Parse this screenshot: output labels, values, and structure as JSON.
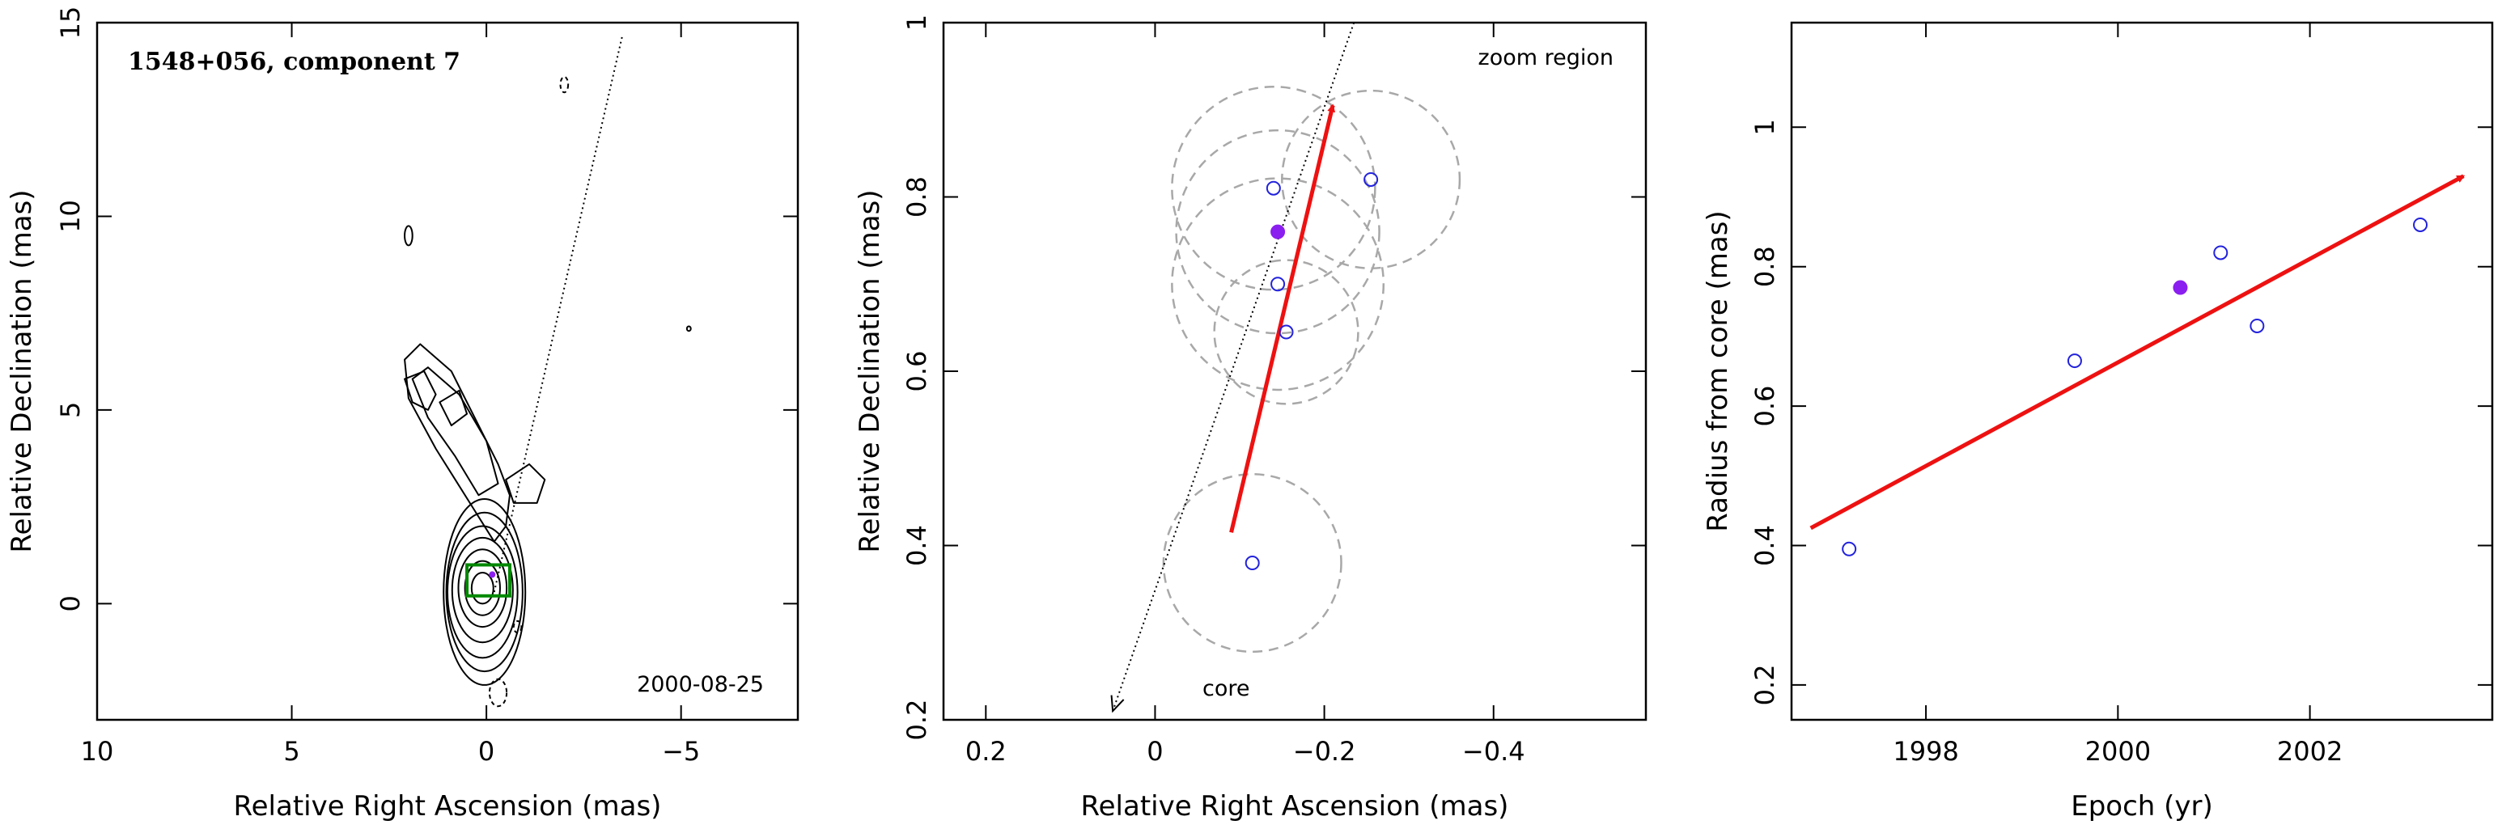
{
  "chart_data": [
    {
      "type": "contour",
      "title": "1548+056, component 7",
      "epoch_label": "2000-08-25",
      "xlabel": "Relative Right Ascension (mas)",
      "ylabel": "Relative Declination (mas)",
      "xlim": [
        10,
        -8
      ],
      "ylim": [
        -3,
        15
      ],
      "x_ticks": [
        10,
        5,
        0,
        -5
      ],
      "x_tick_labels": [
        "10",
        "5",
        "0",
        "−5"
      ],
      "y_ticks": [
        0,
        5,
        10,
        15
      ],
      "y_tick_labels": [
        "0",
        "5",
        "10",
        "15"
      ],
      "trajectory_line": [
        [
          -0.2,
          0.3
        ],
        [
          -3.5,
          14.7
        ]
      ],
      "zoom_box": {
        "x": [
          -0.6,
          0.5
        ],
        "y": [
          0.2,
          1.0
        ]
      },
      "core_contours": [
        {
          "cx": 0.1,
          "cy": 0.4,
          "rx": 0.28,
          "ry": 0.4
        },
        {
          "cx": 0.1,
          "cy": 0.4,
          "rx": 0.45,
          "ry": 0.7
        },
        {
          "cx": 0.1,
          "cy": 0.4,
          "rx": 0.62,
          "ry": 1.0
        },
        {
          "cx": 0.1,
          "cy": 0.35,
          "rx": 0.78,
          "ry": 1.35
        },
        {
          "cx": 0.1,
          "cy": 0.3,
          "rx": 0.9,
          "ry": 1.7
        },
        {
          "cx": 0.05,
          "cy": 0.3,
          "rx": 0.98,
          "ry": 2.05
        },
        {
          "cx": 0.05,
          "cy": 0.3,
          "rx": 1.05,
          "ry": 2.4
        }
      ],
      "jet_contours": [
        [
          [
            0.3,
            2.4
          ],
          [
            0.8,
            3.2
          ],
          [
            1.3,
            4.0
          ],
          [
            2.0,
            5.3
          ],
          [
            2.1,
            6.3
          ],
          [
            1.7,
            6.7
          ],
          [
            0.9,
            6.0
          ],
          [
            0.3,
            4.8
          ],
          [
            -0.3,
            3.6
          ],
          [
            -0.6,
            2.8
          ],
          [
            -0.5,
            2.0
          ],
          [
            -0.2,
            1.6
          ]
        ],
        [
          [
            0.2,
            2.8
          ],
          [
            0.8,
            3.8
          ],
          [
            1.5,
            4.8
          ],
          [
            1.9,
            5.8
          ],
          [
            1.5,
            6.1
          ],
          [
            0.7,
            5.4
          ],
          [
            0.0,
            4.2
          ],
          [
            -0.3,
            3.1
          ]
        ],
        [
          [
            1.9,
            5.2
          ],
          [
            2.1,
            5.8
          ],
          [
            1.6,
            6.0
          ],
          [
            1.3,
            5.4
          ],
          [
            1.5,
            5.0
          ]
        ],
        [
          [
            0.9,
            4.6
          ],
          [
            1.2,
            5.2
          ],
          [
            0.7,
            5.5
          ],
          [
            0.5,
            4.9
          ]
        ],
        [
          [
            -0.5,
            3.2
          ],
          [
            -1.1,
            3.6
          ],
          [
            -1.5,
            3.2
          ],
          [
            -1.3,
            2.6
          ],
          [
            -0.7,
            2.6
          ]
        ]
      ],
      "small_contours": [
        {
          "cx": 2.0,
          "cy": 9.5,
          "rx": 0.1,
          "ry": 0.25,
          "dashed": false
        },
        {
          "cx": -2.0,
          "cy": 13.4,
          "rx": 0.1,
          "ry": 0.2,
          "dashed": true
        },
        {
          "cx": -5.2,
          "cy": 7.1,
          "rx": 0.05,
          "ry": 0.06,
          "dashed": false
        },
        {
          "cx": -0.8,
          "cy": -0.6,
          "rx": 0.1,
          "ry": 0.15,
          "dashed": true
        },
        {
          "cx": -0.3,
          "cy": -2.3,
          "rx": 0.22,
          "ry": 0.35,
          "dashed": true
        }
      ]
    },
    {
      "type": "scatter",
      "annotation_zoom": "zoom region",
      "annotation_core": "core",
      "xlabel": "Relative Right Ascension (mas)",
      "ylabel": "Relative Declination (mas)",
      "xlim": [
        0.25,
        -0.58
      ],
      "ylim": [
        0.2,
        1.0
      ],
      "x_ticks": [
        0.2,
        0,
        -0.2,
        -0.4
      ],
      "x_tick_labels": [
        "0.2",
        "0",
        "−0.2",
        "−0.4"
      ],
      "y_ticks": [
        0.2,
        0.4,
        0.6,
        0.8,
        1.0
      ],
      "y_tick_labels": [
        "0.2",
        "0.4",
        "0.6",
        "0.8",
        "1"
      ],
      "points": [
        {
          "x": -0.115,
          "y": 0.38,
          "filled": false
        },
        {
          "x": -0.155,
          "y": 0.645,
          "filled": false
        },
        {
          "x": -0.145,
          "y": 0.7,
          "filled": false
        },
        {
          "x": -0.145,
          "y": 0.76,
          "filled": true
        },
        {
          "x": -0.14,
          "y": 0.81,
          "filled": false
        },
        {
          "x": -0.255,
          "y": 0.82,
          "filled": false
        }
      ],
      "error_circles": [
        {
          "x": -0.115,
          "y": 0.38,
          "r": 0.105
        },
        {
          "x": -0.155,
          "y": 0.645,
          "r": 0.085
        },
        {
          "x": -0.145,
          "y": 0.7,
          "r": 0.125
        },
        {
          "x": -0.145,
          "y": 0.76,
          "r": 0.12
        },
        {
          "x": -0.14,
          "y": 0.81,
          "r": 0.12
        },
        {
          "x": -0.255,
          "y": 0.82,
          "r": 0.105
        }
      ],
      "motion_vector": {
        "from": [
          -0.09,
          0.415
        ],
        "to": [
          -0.21,
          0.905
        ]
      },
      "core_line": {
        "from": [
          -0.235,
          1.0
        ],
        "to": [
          0.05,
          0.21
        ]
      }
    },
    {
      "type": "scatter",
      "xlabel": "Epoch (yr)",
      "ylabel": "Radius from core (mas)",
      "xlim": [
        1996.6,
        2003.9
      ],
      "ylim": [
        0.15,
        1.15
      ],
      "x_ticks": [
        1998,
        2000,
        2002
      ],
      "x_tick_labels": [
        "1998",
        "2000",
        "2002"
      ],
      "y_ticks": [
        0.2,
        0.4,
        0.6,
        0.8,
        1.0
      ],
      "y_tick_labels": [
        "0.2",
        "0.4",
        "0.6",
        "0.8",
        "1"
      ],
      "points": [
        {
          "x": 1997.2,
          "y": 0.395,
          "filled": false
        },
        {
          "x": 1999.55,
          "y": 0.665,
          "filled": false
        },
        {
          "x": 2000.65,
          "y": 0.77,
          "filled": true
        },
        {
          "x": 2001.07,
          "y": 0.82,
          "filled": false
        },
        {
          "x": 2001.45,
          "y": 0.715,
          "filled": false
        },
        {
          "x": 2003.15,
          "y": 0.86,
          "filled": false
        }
      ],
      "fit_line": {
        "from": [
          1996.8,
          0.425
        ],
        "to": [
          2003.6,
          0.93
        ]
      }
    }
  ],
  "colors": {
    "motion_vector": "#ee1111",
    "point": "#2222dd",
    "point_filled": "#8a1ff0",
    "error_circle": "#a8a8a8",
    "zoom_box": "#008800",
    "zoom_box_point": "#8a1ff0"
  }
}
